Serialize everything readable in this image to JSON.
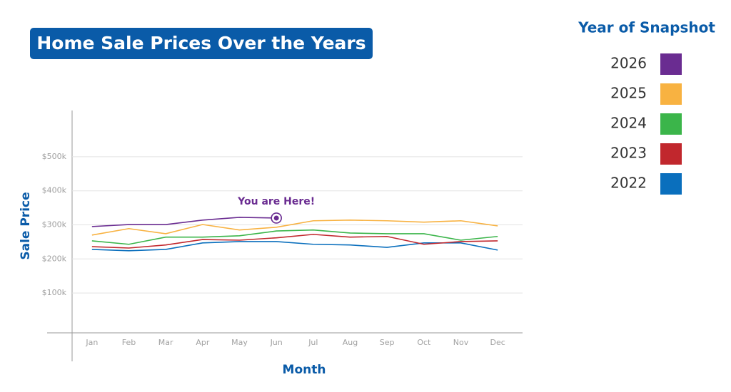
{
  "chart_data": {
    "type": "line",
    "title": "Home Sale Prices Over the Years",
    "x_label": "Month",
    "y_label": "Sale Price",
    "legend_title": "Year of Snapshot",
    "annotation": "You are Here!",
    "categories": [
      "Jan",
      "Feb",
      "Mar",
      "Apr",
      "May",
      "Jun",
      "Jul",
      "Aug",
      "Sep",
      "Oct",
      "Nov",
      "Dec"
    ],
    "series": [
      {
        "name": "2026",
        "color": "#6a2c91",
        "values": [
          295000,
          301000,
          301000,
          314000,
          322000,
          320000,
          null,
          null,
          null,
          null,
          null,
          null
        ]
      },
      {
        "name": "2025",
        "color": "#f8b241",
        "values": [
          270000,
          289000,
          274000,
          301000,
          285000,
          293000,
          312000,
          314000,
          312000,
          308000,
          312000,
          297000
        ]
      },
      {
        "name": "2024",
        "color": "#3bb54a",
        "values": [
          253000,
          243000,
          264000,
          264000,
          268000,
          282000,
          285000,
          276000,
          274000,
          274000,
          255000,
          266000
        ]
      },
      {
        "name": "2023",
        "color": "#c1272d",
        "values": [
          236000,
          232000,
          241000,
          257000,
          255000,
          262000,
          272000,
          264000,
          266000,
          243000,
          251000,
          253000
        ]
      },
      {
        "name": "2022",
        "color": "#0a6fbd",
        "values": [
          228000,
          224000,
          228000,
          247000,
          251000,
          251000,
          243000,
          241000,
          234000,
          247000,
          247000,
          226000
        ]
      }
    ],
    "ylim": [
      -17000,
      640000
    ],
    "yticks": [
      {
        "value": 100000,
        "label": "$100k"
      },
      {
        "value": 200000,
        "label": "$200k"
      },
      {
        "value": 300000,
        "label": "$300k"
      },
      {
        "value": 400000,
        "label": "$400k"
      },
      {
        "value": 500000,
        "label": "$500k"
      }
    ],
    "grid": true
  }
}
